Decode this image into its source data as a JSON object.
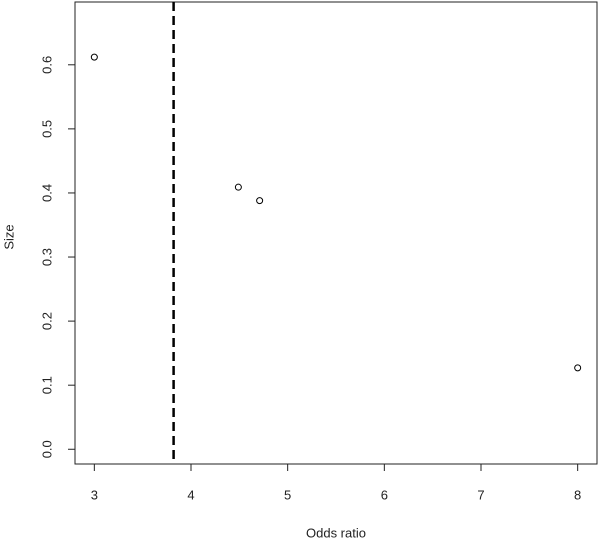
{
  "chart_data": {
    "type": "scatter",
    "x_label": "Odds ratio",
    "y_label": "Size",
    "x": [
      3,
      4.49,
      4.71,
      8
    ],
    "values": [
      0.612,
      0.409,
      0.388,
      0.127
    ],
    "color": "#000000",
    "vline": 3.82,
    "xlim": [
      2.8,
      8.2
    ],
    "xticks": [
      3,
      4,
      5,
      6,
      7,
      8
    ],
    "ylim": [
      -0.023,
      0.698
    ],
    "yticks": [
      {
        "value": 0,
        "label": "0.0"
      },
      0.1,
      0.2,
      0.3,
      0.4,
      0.5,
      0.6
    ]
  }
}
